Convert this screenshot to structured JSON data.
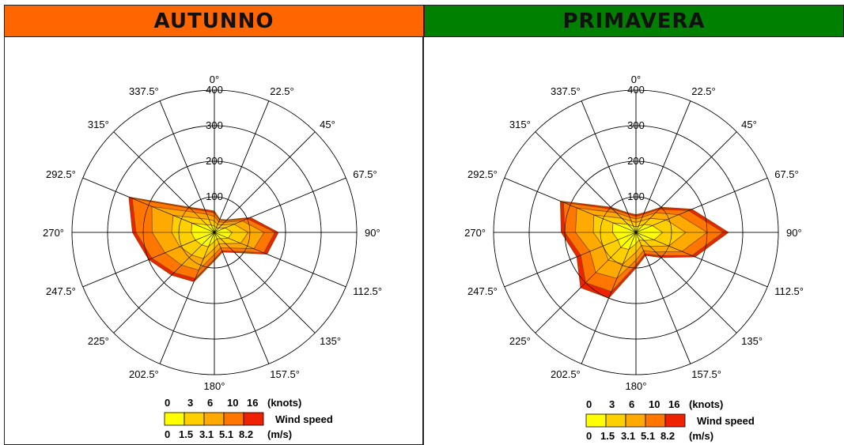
{
  "panels": [
    {
      "title": "AUTUNNO",
      "header_color": "#ff6600"
    },
    {
      "title": "PRIMAVERA",
      "header_color": "#008000"
    }
  ],
  "legend": {
    "knots_ticks": [
      "0",
      "3",
      "6",
      "10",
      "16"
    ],
    "knots_unit": "(knots)",
    "ms_ticks": [
      "0",
      "1.5",
      "3.1",
      "5.1",
      "8.2"
    ],
    "ms_unit": "(m/s)",
    "label": "Wind speed",
    "colors": [
      "#ffff00",
      "#ffd000",
      "#ffaa00",
      "#ff7700",
      "#ee2200"
    ]
  },
  "chart_data": [
    {
      "type": "radar",
      "title": "AUTUNNO",
      "directions": [
        "0°",
        "22.5°",
        "45°",
        "67.5°",
        "90°",
        "112.5°",
        "135°",
        "157.5°",
        "180°",
        "202.5°",
        "225°",
        "247.5°",
        "270°",
        "292.5°",
        "315°",
        "337.5°"
      ],
      "radial_ticks": [
        "100",
        "200",
        "300",
        "400"
      ],
      "rmax": 400,
      "series": [
        {
          "values": [
            60,
            40,
            50,
            110,
            180,
            160,
            80,
            60,
            80,
            150,
            170,
            200,
            230,
            260,
            100,
            70
          ]
        },
        {
          "values": [
            55,
            38,
            47,
            100,
            170,
            150,
            75,
            56,
            75,
            140,
            160,
            190,
            220,
            250,
            95,
            65
          ]
        },
        {
          "values": [
            45,
            32,
            40,
            85,
            140,
            120,
            62,
            47,
            62,
            115,
            130,
            150,
            175,
            190,
            80,
            55
          ]
        },
        {
          "values": [
            32,
            24,
            30,
            60,
            95,
            80,
            45,
            34,
            45,
            80,
            90,
            105,
            120,
            125,
            55,
            40
          ]
        },
        {
          "values": [
            18,
            14,
            17,
            33,
            50,
            42,
            25,
            19,
            25,
            44,
            50,
            58,
            65,
            68,
            30,
            22
          ]
        }
      ]
    },
    {
      "type": "radar",
      "title": "PRIMAVERA",
      "directions": [
        "0°",
        "22.5°",
        "45°",
        "67.5°",
        "90°",
        "112.5°",
        "135°",
        "157.5°",
        "180°",
        "202.5°",
        "225°",
        "247.5°",
        "270°",
        "292.5°",
        "315°",
        "337.5°"
      ],
      "radial_ticks": [
        "100",
        "200",
        "300",
        "400"
      ],
      "rmax": 400,
      "series": [
        {
          "values": [
            50,
            60,
            100,
            170,
            260,
            180,
            100,
            70,
            100,
            200,
            220,
            180,
            210,
            230,
            100,
            60
          ]
        },
        {
          "values": [
            45,
            55,
            92,
            160,
            245,
            170,
            92,
            65,
            92,
            180,
            200,
            168,
            200,
            220,
            92,
            55
          ]
        },
        {
          "values": [
            38,
            46,
            78,
            130,
            200,
            140,
            78,
            55,
            78,
            140,
            160,
            140,
            170,
            180,
            78,
            46
          ]
        },
        {
          "values": [
            28,
            34,
            56,
            92,
            140,
            100,
            56,
            40,
            56,
            96,
            110,
            100,
            120,
            128,
            56,
            34
          ]
        },
        {
          "values": [
            16,
            19,
            32,
            50,
            75,
            55,
            32,
            23,
            32,
            52,
            60,
            55,
            66,
            70,
            32,
            19
          ]
        }
      ]
    }
  ]
}
